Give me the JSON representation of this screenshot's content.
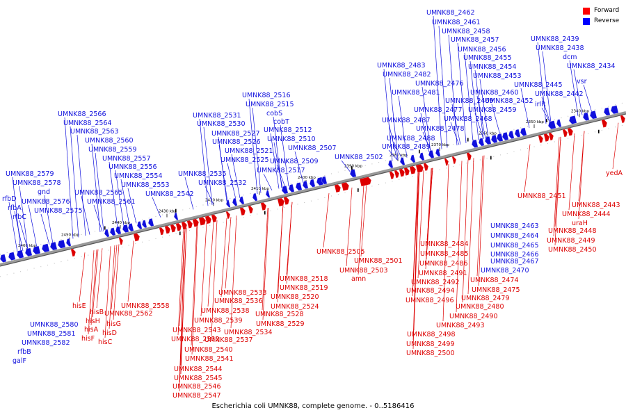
{
  "caption": "Escherichia coli UMNK88, complete genome. - 0..5186416",
  "legend": [
    {
      "label": "Forward",
      "color": "#ff0000"
    },
    {
      "label": "Reverse",
      "color": "#0000ff"
    }
  ],
  "colors": {
    "forward": "#dd0000",
    "reverse": "#1010dd",
    "backbone": "#808080"
  },
  "ticks": [
    "2460 kbp",
    "2450 kbp",
    "2440 kbp",
    "2430 kbp",
    "2420 kbp",
    "2410 kbp",
    "2400 kbp",
    "2390 kbp",
    "2380 kbp",
    "2370 kbp",
    "2360 kbp",
    "2350 kbp",
    "2340 kbp"
  ],
  "reverse_labels": [
    "UMNK88_2462",
    "UMNK88_2461",
    "UMNK88_2458",
    "UMNK88_2457",
    "UMNK88_2456",
    "UMNK88_2455",
    "UMNK88_2454",
    "UMNK88_2453",
    "UMNK88_2460",
    "UMNK88_2452",
    "UMNK88_2459",
    "UMNK88_2468",
    "UMNK88_2469",
    "UMNK88_2477",
    "UMNK88_2478",
    "UMNK88_2483",
    "UMNK88_2482",
    "UMNK88_2476",
    "UMNK88_2481",
    "UMNK88_2487",
    "UMNK88_2488",
    "UMNK88_2489",
    "UMNK88_2439",
    "UMNK88_2438",
    "dcm",
    "UMNK88_2434",
    "vsr",
    "UMNK88_2445",
    "UMNK88_2442",
    "irlR",
    "UMNK88_2516",
    "UMNK88_2515",
    "cobS",
    "cobT",
    "UMNK88_2512",
    "UMNK88_2510",
    "UMNK88_2507",
    "UMNK88_2509",
    "UMNK88_2502",
    "UMNK88_2517",
    "UMNK88_2531",
    "UMNK88_2530",
    "UMNK88_2527",
    "UMNK88_2526",
    "UMNK88_2521",
    "UMNK88_2525",
    "UMNK88_2535",
    "UMNK88_2532",
    "UMNK88_2566",
    "UMNK88_2564",
    "UMNK88_2563",
    "UMNK88_2560",
    "UMNK88_2559",
    "UMNK88_2557",
    "UMNK88_2556",
    "UMNK88_2554",
    "UMNK88_2553",
    "UMNK88_2542",
    "UMNK88_2565",
    "UMNK88_2561",
    "UMNK88_2579",
    "UMNK88_2578",
    "gnd",
    "UMNK88_2576",
    "UMNK88_2575",
    "rfbD",
    "rfbA",
    "rfbC",
    "UMNK88_2580",
    "UMNK88_2581",
    "UMNK88_2582",
    "rfbB",
    "galF",
    "UMNK88_2463",
    "UMNK88_2464",
    "UMNK88_2465",
    "UMNK88_2466",
    "UMNK88_2467",
    "UMNK88_2470"
  ],
  "forward_labels": [
    "yedA",
    "UMNK88_2451",
    "UMNK88_2443",
    "UMNK88_2444",
    "uraH",
    "UMNK88_2448",
    "UMNK88_2449",
    "UMNK88_2450",
    "UMNK88_2484",
    "UMNK88_2485",
    "UMNK88_2486",
    "UMNK88_2491",
    "UMNK88_2492",
    "UMNK88_2474",
    "UMNK88_2475",
    "UMNK88_2494",
    "UMNK88_2479",
    "UMNK88_2496",
    "UMNK88_2480",
    "UMNK88_2490",
    "UMNK88_2493",
    "UMNK88_2498",
    "UMNK88_2499",
    "UMNK88_2500",
    "UMNK88_2505",
    "UMNK88_2501",
    "UMNK88_2503",
    "amn",
    "UMNK88_2518",
    "UMNK88_2519",
    "UMNK88_2520",
    "UMNK88_2533",
    "UMNK88_2524",
    "UMNK88_2536",
    "UMNK88_2528",
    "UMNK88_2538",
    "UMNK88_2529",
    "UMNK88_2539",
    "UMNK88_2534",
    "UMNK88_2543",
    "UMNK88_2552",
    "UMNK88_2537",
    "UMNK88_2540",
    "UMNK88_2541",
    "UMNK88_2544",
    "UMNK88_2545",
    "UMNK88_2546",
    "UMNK88_2547",
    "UMNK88_2558",
    "UMNK88_2562",
    "hisE",
    "hisB",
    "hisH",
    "hisG",
    "hisA",
    "hisD",
    "hisF",
    "hisC"
  ]
}
